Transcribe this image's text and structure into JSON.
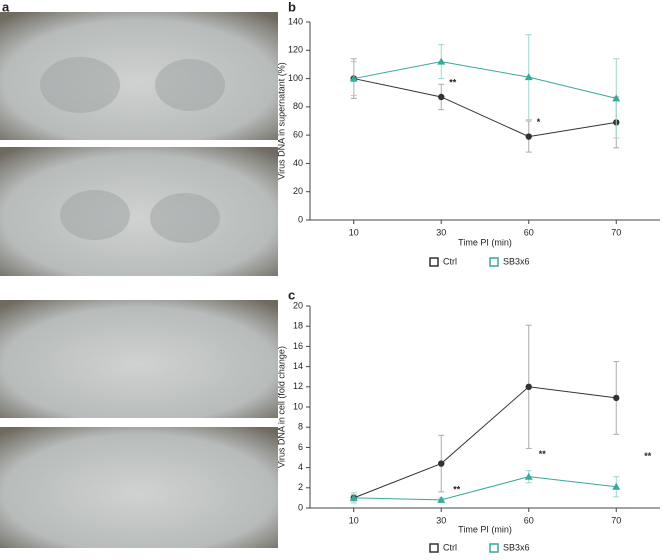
{
  "panel_labels": [
    "a",
    "b",
    "c"
  ],
  "chart_data": [
    {
      "type": "line",
      "x_label": "Time PI (min)",
      "y_label": "Virus DNA in supernatant (%)",
      "categories": [
        "10",
        "30",
        "60",
        "70"
      ],
      "ylim": [
        0,
        140
      ],
      "yticks": [
        0,
        20,
        40,
        60,
        80,
        100,
        120,
        140
      ],
      "series": [
        {
          "name": "Ctrl",
          "color": "#333333",
          "marker": "circle",
          "values": [
            100,
            87,
            59,
            69
          ],
          "errors": [
            14,
            9,
            11,
            18
          ]
        },
        {
          "name": "SB3x6",
          "color": "#3aa89a",
          "marker": "triangle",
          "values": [
            100,
            112,
            101,
            86
          ],
          "errors": [
            12,
            12,
            30,
            28
          ]
        }
      ],
      "annotations": [
        "**",
        "*"
      ],
      "legend": "bottom"
    },
    {
      "type": "line",
      "x_label": "Time PI (min)",
      "y_label": "Virus DNA in cell (fold change)",
      "categories": [
        "10",
        "30",
        "60",
        "70"
      ],
      "ylim": [
        0,
        20
      ],
      "yticks": [
        0,
        2,
        4,
        6,
        8,
        10,
        12,
        14,
        16,
        18,
        20
      ],
      "series": [
        {
          "name": "Ctrl",
          "color": "#333333",
          "marker": "circle",
          "values": [
            1,
            4.4,
            12,
            10.9
          ],
          "errors": [
            0.3,
            2.8,
            6.1,
            3.6
          ]
        },
        {
          "name": "SB3x6",
          "color": "#3aa89a",
          "marker": "triangle",
          "values": [
            1,
            0.8,
            3.1,
            2.1
          ],
          "errors": [
            0.5,
            0.2,
            0.6,
            1.0
          ]
        }
      ],
      "annotations": [
        "**",
        "**",
        "**"
      ],
      "legend": "bottom"
    }
  ]
}
